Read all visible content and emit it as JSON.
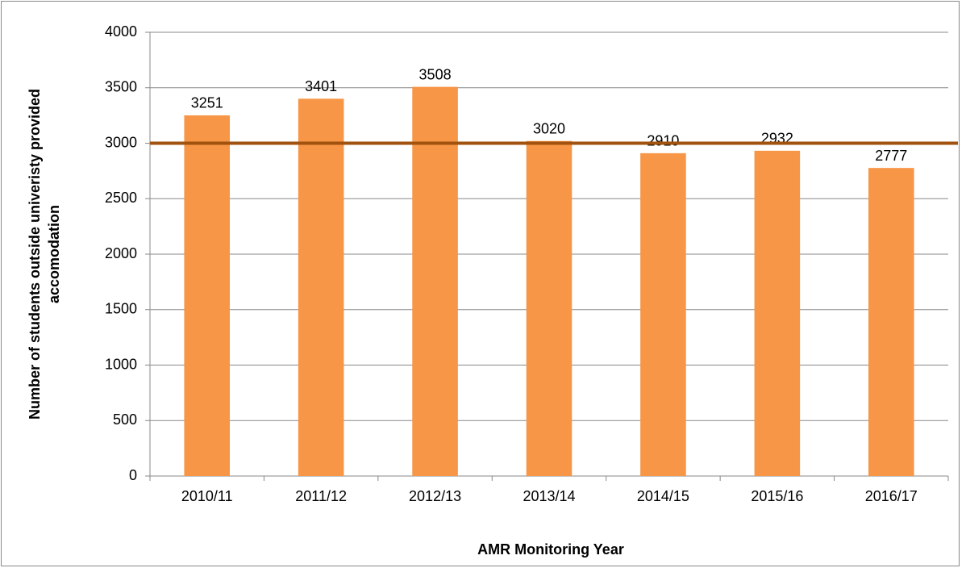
{
  "chart_data": {
    "type": "bar",
    "categories": [
      "2010/11",
      "2011/12",
      "2012/13",
      "2013/14",
      "2014/15",
      "2015/16",
      "2016/17"
    ],
    "values": [
      3251,
      3401,
      3508,
      3020,
      2910,
      2932,
      2777
    ],
    "color": "#f79646",
    "reference_line": 3000,
    "reference_line_color": "#a0520e",
    "ylim": [
      0,
      4000
    ],
    "yticks": [
      0,
      500,
      1000,
      1500,
      2000,
      2500,
      3000,
      3500,
      4000
    ],
    "grid": true,
    "x_label": "AMR Monitoring Year",
    "y_label": [
      "Number of students outside univeristy provided",
      "accomodation"
    ]
  }
}
